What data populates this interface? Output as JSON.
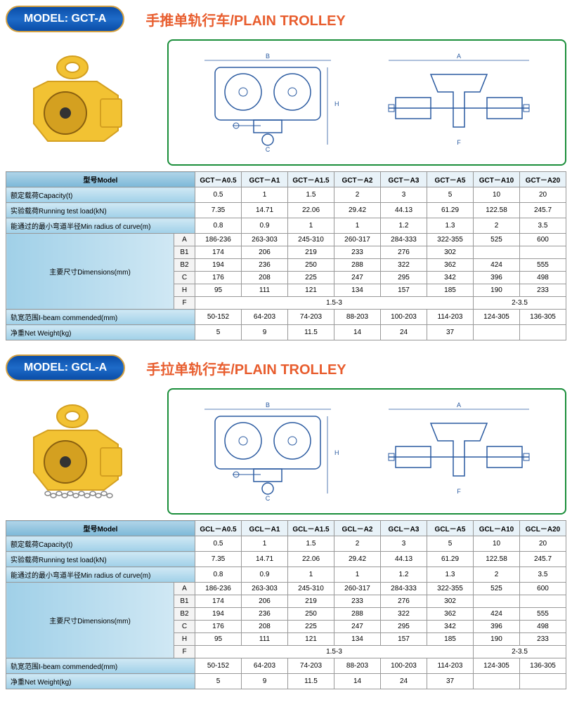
{
  "sections": [
    {
      "badge": "MODEL: GCT-A",
      "title": "手推单轨行车/PLAIN TROLLEY",
      "model_prefix": "GCT",
      "has_chain": false
    },
    {
      "badge": "MODEL: GCL-A",
      "title": "手拉单轨行车/PLAIN TROLLEY",
      "model_prefix": "GCL",
      "has_chain": true
    }
  ],
  "table_labels": {
    "model": "型号Model",
    "capacity": "额定载荷Capacity(t)",
    "test_load": "实验载荷Running test load(kN)",
    "min_radius": "能通过的最小弯道半径Min radius of curve(m)",
    "dimensions": "主要尺寸Dimensions(mm)",
    "ibeam": "轨宽范围I-beam commended(mm)",
    "net_weight": "净重Net Weight(kg)"
  },
  "suffixes": [
    "A0.5",
    "A1",
    "A1.5",
    "A2",
    "A3",
    "A5",
    "A10",
    "A20"
  ],
  "rows": {
    "capacity": [
      "0.5",
      "1",
      "1.5",
      "2",
      "3",
      "5",
      "10",
      "20"
    ],
    "test_load": [
      "7.35",
      "14.71",
      "22.06",
      "29.42",
      "44.13",
      "61.29",
      "122.58",
      "245.7"
    ],
    "min_radius": [
      "0.8",
      "0.9",
      "1",
      "1",
      "1.2",
      "1.3",
      "2",
      "3.5"
    ],
    "A": [
      "186-236",
      "263-303",
      "245-310",
      "260-317",
      "284-333",
      "322-355",
      "525",
      "600"
    ],
    "B1": [
      "174",
      "206",
      "219",
      "233",
      "276",
      "302",
      "",
      ""
    ],
    "B2": [
      "194",
      "236",
      "250",
      "288",
      "322",
      "362",
      "424",
      "555"
    ],
    "C": [
      "176",
      "208",
      "225",
      "247",
      "295",
      "342",
      "396",
      "498"
    ],
    "H": [
      "95",
      "111",
      "121",
      "134",
      "157",
      "185",
      "190",
      "233"
    ],
    "F_span1": "1.5-3",
    "F_span2": "2-3.5",
    "ibeam": [
      "50-152",
      "64-203",
      "74-203",
      "88-203",
      "100-203",
      "114-203",
      "124-305",
      "136-305"
    ],
    "net_weight": [
      "5",
      "9",
      "11.5",
      "14",
      "24",
      "37",
      "",
      ""
    ]
  },
  "dim_keys": [
    "A",
    "B1",
    "B2",
    "C",
    "H"
  ],
  "colors": {
    "product": "#f2c233",
    "product_dark": "#d4a020",
    "diagram_stroke": "#2a5aa0",
    "diagram_border": "#1a8e3a",
    "title": "#e85d2e"
  }
}
